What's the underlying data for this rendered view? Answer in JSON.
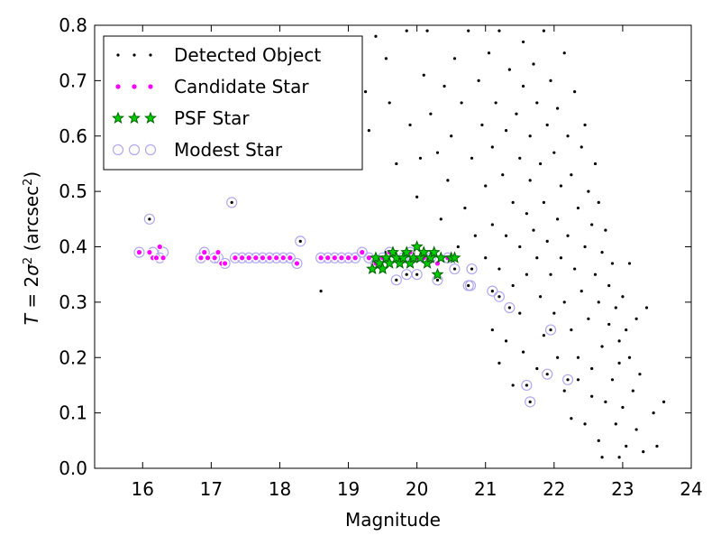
{
  "chart_data": {
    "type": "scatter",
    "title": "",
    "xlabel": "Magnitude",
    "ylabel": "T = 2σ² (arcsec²)",
    "ylabel_parts": {
      "prefix": "T",
      "eq": " = 2",
      "sigma": "σ",
      "sup": "2",
      "unit": " (arcsec",
      "unit_sup": "2",
      "close": ")"
    },
    "xlim": [
      15.3,
      24.0
    ],
    "ylim": [
      0.0,
      0.8
    ],
    "xticks": [
      16,
      17,
      18,
      19,
      20,
      21,
      22,
      23,
      24
    ],
    "yticks": [
      0.0,
      0.1,
      0.2,
      0.3,
      0.4,
      0.5,
      0.6,
      0.7,
      0.8
    ],
    "xtick_labels": [
      "16",
      "17",
      "18",
      "19",
      "20",
      "21",
      "22",
      "23",
      "24"
    ],
    "ytick_labels": [
      "0.0",
      "0.1",
      "0.2",
      "0.3",
      "0.4",
      "0.5",
      "0.6",
      "0.7",
      "0.8"
    ],
    "grid": false,
    "legend_position": "top-left",
    "colors": {
      "detected": "#000000",
      "candidate": "#ff00ff",
      "psf_face": "#00cc00",
      "psf_edge": "#006400",
      "modest": "#b0a8f0"
    },
    "series": [
      {
        "name": "Detected Object",
        "marker": "dot",
        "points": [
          [
            16.1,
            0.45
          ],
          [
            17.3,
            0.48
          ],
          [
            18.3,
            0.41
          ],
          [
            18.6,
            0.32
          ],
          [
            19.55,
            0.39
          ],
          [
            19.7,
            0.34
          ],
          [
            19.85,
            0.35
          ],
          [
            20.0,
            0.35
          ],
          [
            20.3,
            0.34
          ],
          [
            20.55,
            0.36
          ],
          [
            20.75,
            0.33
          ],
          [
            20.8,
            0.36
          ],
          [
            21.1,
            0.32
          ],
          [
            21.2,
            0.31
          ],
          [
            21.35,
            0.29
          ],
          [
            21.6,
            0.15
          ],
          [
            21.65,
            0.12
          ],
          [
            21.9,
            0.17
          ],
          [
            21.95,
            0.25
          ],
          [
            22.2,
            0.16
          ],
          [
            19.25,
            0.68
          ],
          [
            19.3,
            0.61
          ],
          [
            19.4,
            0.78
          ],
          [
            19.55,
            0.74
          ],
          [
            19.6,
            0.66
          ],
          [
            19.7,
            0.55
          ],
          [
            19.85,
            0.79
          ],
          [
            19.9,
            0.62
          ],
          [
            20.0,
            0.49
          ],
          [
            20.05,
            0.56
          ],
          [
            20.1,
            0.71
          ],
          [
            20.15,
            0.79
          ],
          [
            20.2,
            0.64
          ],
          [
            20.3,
            0.57
          ],
          [
            20.35,
            0.45
          ],
          [
            20.4,
            0.69
          ],
          [
            20.45,
            0.52
          ],
          [
            20.5,
            0.6
          ],
          [
            20.55,
            0.74
          ],
          [
            20.6,
            0.4
          ],
          [
            20.65,
            0.66
          ],
          [
            20.7,
            0.47
          ],
          [
            20.75,
            0.79
          ],
          [
            20.8,
            0.56
          ],
          [
            20.85,
            0.42
          ],
          [
            20.9,
            0.7
          ],
          [
            20.95,
            0.62
          ],
          [
            21.0,
            0.38
          ],
          [
            21.0,
            0.51
          ],
          [
            21.05,
            0.75
          ],
          [
            21.1,
            0.58
          ],
          [
            21.1,
            0.44
          ],
          [
            21.15,
            0.66
          ],
          [
            21.2,
            0.36
          ],
          [
            21.2,
            0.79
          ],
          [
            21.25,
            0.53
          ],
          [
            21.3,
            0.61
          ],
          [
            21.3,
            0.42
          ],
          [
            21.35,
            0.72
          ],
          [
            21.4,
            0.48
          ],
          [
            21.4,
            0.33
          ],
          [
            21.45,
            0.64
          ],
          [
            21.5,
            0.56
          ],
          [
            21.5,
            0.4
          ],
          [
            21.55,
            0.77
          ],
          [
            21.55,
            0.69
          ],
          [
            21.6,
            0.46
          ],
          [
            21.6,
            0.35
          ],
          [
            21.65,
            0.6
          ],
          [
            21.65,
            0.52
          ],
          [
            21.7,
            0.73
          ],
          [
            21.7,
            0.43
          ],
          [
            21.75,
            0.38
          ],
          [
            21.75,
            0.66
          ],
          [
            21.8,
            0.55
          ],
          [
            21.8,
            0.31
          ],
          [
            21.85,
            0.79
          ],
          [
            21.85,
            0.48
          ],
          [
            21.9,
            0.62
          ],
          [
            21.9,
            0.41
          ],
          [
            21.95,
            0.7
          ],
          [
            21.95,
            0.35
          ],
          [
            22.0,
            0.57
          ],
          [
            22.0,
            0.28
          ],
          [
            22.05,
            0.45
          ],
          [
            22.05,
            0.65
          ],
          [
            22.1,
            0.51
          ],
          [
            22.1,
            0.38
          ],
          [
            22.15,
            0.75
          ],
          [
            22.15,
            0.3
          ],
          [
            22.2,
            0.6
          ],
          [
            22.2,
            0.42
          ],
          [
            22.25,
            0.53
          ],
          [
            22.25,
            0.25
          ],
          [
            22.3,
            0.68
          ],
          [
            22.3,
            0.36
          ],
          [
            22.35,
            0.47
          ],
          [
            22.35,
            0.2
          ],
          [
            22.4,
            0.58
          ],
          [
            22.4,
            0.32
          ],
          [
            22.45,
            0.4
          ],
          [
            22.45,
            0.62
          ],
          [
            22.5,
            0.5
          ],
          [
            22.5,
            0.27
          ],
          [
            22.55,
            0.44
          ],
          [
            22.55,
            0.18
          ],
          [
            22.6,
            0.55
          ],
          [
            22.6,
            0.35
          ],
          [
            22.65,
            0.3
          ],
          [
            22.65,
            0.48
          ],
          [
            22.7,
            0.39
          ],
          [
            22.7,
            0.22
          ],
          [
            22.75,
            0.43
          ],
          [
            22.75,
            0.12
          ],
          [
            22.8,
            0.33
          ],
          [
            22.8,
            0.26
          ],
          [
            22.85,
            0.37
          ],
          [
            22.85,
            0.16
          ],
          [
            22.9,
            0.29
          ],
          [
            22.9,
            0.08
          ],
          [
            22.95,
            0.23
          ],
          [
            22.95,
            0.19
          ],
          [
            23.0,
            0.31
          ],
          [
            23.0,
            0.11
          ],
          [
            23.05,
            0.25
          ],
          [
            23.05,
            0.04
          ],
          [
            23.1,
            0.2
          ],
          [
            23.1,
            0.37
          ],
          [
            23.15,
            0.14
          ],
          [
            23.2,
            0.27
          ],
          [
            23.2,
            0.07
          ],
          [
            23.25,
            0.17
          ],
          [
            23.3,
            0.03
          ],
          [
            23.35,
            0.29
          ],
          [
            23.45,
            0.1
          ],
          [
            23.5,
            0.04
          ],
          [
            23.6,
            0.12
          ],
          [
            21.1,
            0.25
          ],
          [
            21.2,
            0.19
          ],
          [
            21.3,
            0.23
          ],
          [
            21.4,
            0.15
          ],
          [
            21.5,
            0.28
          ],
          [
            21.55,
            0.21
          ],
          [
            21.75,
            0.18
          ],
          [
            21.85,
            0.24
          ],
          [
            22.05,
            0.2
          ],
          [
            22.15,
            0.14
          ],
          [
            22.25,
            0.09
          ],
          [
            22.35,
            0.16
          ],
          [
            22.45,
            0.08
          ],
          [
            22.55,
            0.13
          ],
          [
            22.65,
            0.05
          ],
          [
            22.7,
            0.02
          ],
          [
            22.95,
            0.02
          ]
        ]
      },
      {
        "name": "Candidate Star",
        "marker": "circle-small",
        "points": [
          [
            15.95,
            0.39
          ],
          [
            16.1,
            0.39
          ],
          [
            16.15,
            0.38
          ],
          [
            16.2,
            0.38
          ],
          [
            16.25,
            0.4
          ],
          [
            16.3,
            0.38
          ],
          [
            16.85,
            0.38
          ],
          [
            16.9,
            0.39
          ],
          [
            16.95,
            0.38
          ],
          [
            17.05,
            0.38
          ],
          [
            17.1,
            0.39
          ],
          [
            17.15,
            0.37
          ],
          [
            17.2,
            0.37
          ],
          [
            17.35,
            0.38
          ],
          [
            17.45,
            0.38
          ],
          [
            17.55,
            0.38
          ],
          [
            17.65,
            0.38
          ],
          [
            17.75,
            0.38
          ],
          [
            17.85,
            0.38
          ],
          [
            17.95,
            0.38
          ],
          [
            18.05,
            0.38
          ],
          [
            18.15,
            0.38
          ],
          [
            18.25,
            0.37
          ],
          [
            18.6,
            0.38
          ],
          [
            18.7,
            0.38
          ],
          [
            18.8,
            0.38
          ],
          [
            18.9,
            0.38
          ],
          [
            19.0,
            0.38
          ],
          [
            19.1,
            0.38
          ],
          [
            19.2,
            0.39
          ],
          [
            19.3,
            0.38
          ],
          [
            19.4,
            0.37
          ],
          [
            19.5,
            0.38
          ],
          [
            19.6,
            0.39
          ],
          [
            19.7,
            0.38
          ],
          [
            19.8,
            0.38
          ],
          [
            19.9,
            0.39
          ],
          [
            20.0,
            0.38
          ],
          [
            20.1,
            0.38
          ],
          [
            20.2,
            0.38
          ],
          [
            20.3,
            0.37
          ],
          [
            20.45,
            0.38
          ]
        ]
      },
      {
        "name": "PSF Star",
        "marker": "star",
        "points": [
          [
            19.35,
            0.36
          ],
          [
            19.4,
            0.38
          ],
          [
            19.45,
            0.37
          ],
          [
            19.5,
            0.36
          ],
          [
            19.55,
            0.38
          ],
          [
            19.6,
            0.37
          ],
          [
            19.65,
            0.39
          ],
          [
            19.7,
            0.38
          ],
          [
            19.75,
            0.37
          ],
          [
            19.8,
            0.38
          ],
          [
            19.85,
            0.39
          ],
          [
            19.9,
            0.37
          ],
          [
            19.95,
            0.38
          ],
          [
            20.0,
            0.4
          ],
          [
            20.05,
            0.38
          ],
          [
            20.1,
            0.39
          ],
          [
            20.15,
            0.37
          ],
          [
            20.2,
            0.38
          ],
          [
            20.25,
            0.39
          ],
          [
            20.3,
            0.35
          ],
          [
            20.35,
            0.38
          ],
          [
            20.5,
            0.38
          ],
          [
            20.55,
            0.38
          ]
        ]
      },
      {
        "name": "Modest Star",
        "marker": "circle-large",
        "points": [
          [
            15.95,
            0.39
          ],
          [
            16.1,
            0.45
          ],
          [
            16.15,
            0.39
          ],
          [
            16.25,
            0.38
          ],
          [
            16.3,
            0.39
          ],
          [
            16.85,
            0.38
          ],
          [
            16.9,
            0.39
          ],
          [
            17.05,
            0.38
          ],
          [
            17.1,
            0.38
          ],
          [
            17.2,
            0.37
          ],
          [
            17.3,
            0.48
          ],
          [
            17.35,
            0.38
          ],
          [
            17.45,
            0.38
          ],
          [
            17.55,
            0.38
          ],
          [
            17.65,
            0.38
          ],
          [
            17.75,
            0.38
          ],
          [
            17.85,
            0.38
          ],
          [
            17.95,
            0.38
          ],
          [
            18.05,
            0.38
          ],
          [
            18.15,
            0.38
          ],
          [
            18.25,
            0.37
          ],
          [
            18.3,
            0.41
          ],
          [
            18.6,
            0.38
          ],
          [
            18.7,
            0.38
          ],
          [
            18.8,
            0.38
          ],
          [
            18.9,
            0.38
          ],
          [
            19.0,
            0.38
          ],
          [
            19.1,
            0.38
          ],
          [
            19.2,
            0.39
          ],
          [
            19.3,
            0.38
          ],
          [
            19.4,
            0.37
          ],
          [
            19.5,
            0.38
          ],
          [
            19.6,
            0.39
          ],
          [
            19.7,
            0.34
          ],
          [
            19.8,
            0.38
          ],
          [
            19.85,
            0.35
          ],
          [
            19.9,
            0.39
          ],
          [
            20.0,
            0.35
          ],
          [
            20.1,
            0.38
          ],
          [
            20.2,
            0.38
          ],
          [
            20.3,
            0.34
          ],
          [
            20.45,
            0.38
          ],
          [
            20.55,
            0.36
          ],
          [
            20.75,
            0.33
          ],
          [
            20.8,
            0.36
          ],
          [
            20.78,
            0.33
          ],
          [
            21.1,
            0.32
          ],
          [
            21.2,
            0.31
          ],
          [
            21.35,
            0.29
          ],
          [
            21.6,
            0.15
          ],
          [
            21.65,
            0.12
          ],
          [
            21.9,
            0.17
          ],
          [
            21.95,
            0.25
          ],
          [
            22.2,
            0.16
          ]
        ]
      }
    ]
  }
}
